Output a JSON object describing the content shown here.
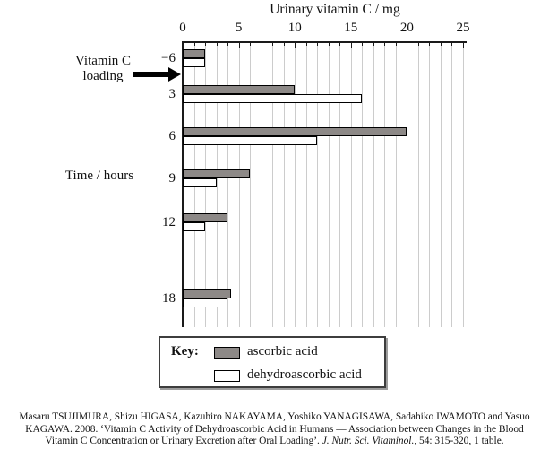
{
  "figure": {
    "x_axis_title": "Urinary vitamin C / mg",
    "loading_label_line1": "Vitamin C",
    "loading_label_line2": "loading",
    "y_axis_title": "Time / hours"
  },
  "key": {
    "title": "Key:",
    "entries": [
      {
        "label": "ascorbic acid",
        "color": "#8d8987"
      },
      {
        "label": "dehydroascorbic acid",
        "color": "#ffffff"
      }
    ]
  },
  "citation": {
    "line1": "Masaru TSUJIMURA, Shizu HIGASA, Kazuhiro NAKAYAMA, Yoshiko YANAGISAWA, Sadahiko IWAMOTO and Yasuo",
    "line2": "KAGAWA. 2008. ‘Vitamin C Activity of Dehydroascorbic Acid in Humans — Association between Changes in the Blood",
    "line3_prefix": "Vitamin C Concentration or Urinary Excretion after Oral Loading’. ",
    "line3_italic": "J. Nutr. Sci. Vitaminol.",
    "line3_suffix": ", 54: 315-320, 1 table."
  },
  "chart_data": {
    "type": "bar",
    "orientation": "horizontal",
    "title": "Urinary vitamin C / mg",
    "xlabel": "Urinary vitamin C / mg",
    "ylabel": "Time / hours",
    "categories": [
      "−6",
      "3",
      "6",
      "9",
      "12",
      "18"
    ],
    "series": [
      {
        "name": "ascorbic acid",
        "color": "#8d8987",
        "values": [
          2,
          10,
          20,
          6,
          4,
          4.3
        ]
      },
      {
        "name": "dehydroascorbic acid",
        "color": "#ffffff",
        "values": [
          2,
          16,
          12,
          3,
          2,
          4
        ]
      }
    ],
    "xlim": [
      0,
      25
    ],
    "xticks": [
      0,
      5,
      10,
      15,
      20,
      25
    ],
    "minor_tick_step": 1,
    "grid": "vertical gridlines every 1 mg",
    "legend_position": "boxed key below chart",
    "annotation": "Vitamin C loading — arrow pointing at axis between −6 and 3 hours"
  }
}
